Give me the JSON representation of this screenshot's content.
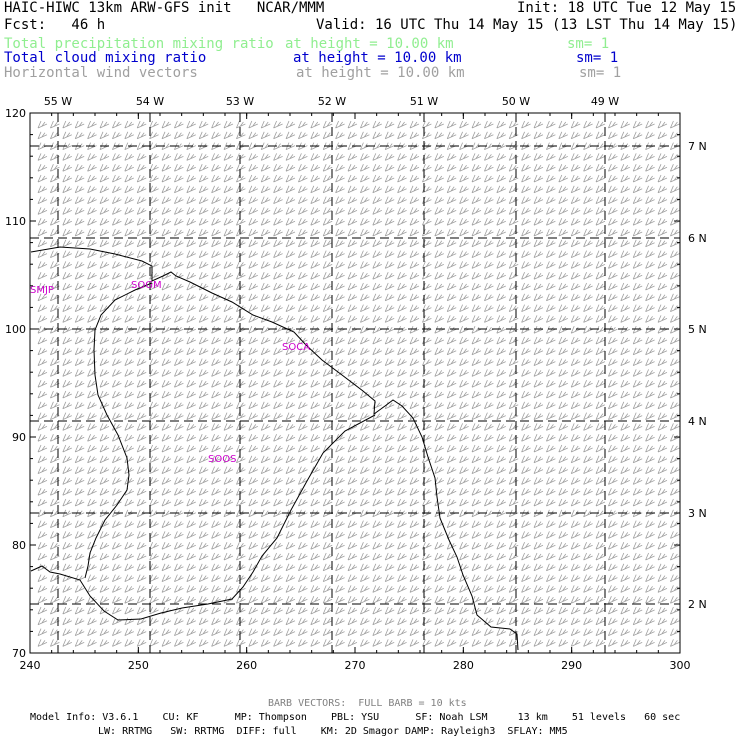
{
  "header": {
    "title": "HAIC-HIWC 13km ARW-GFS init   NCAR/MMM",
    "init": "Init: 18 UTC Tue 12 May 15",
    "fcst": "Fcst:   46 h",
    "valid": "Valid: 16 UTC Thu 14 May 15 (13 LST Thu 14 May 15)",
    "fields": [
      {
        "name": "Total precipitation mixing ratio",
        "height": "at height = 10.00 km",
        "sm": "sm= 1",
        "color": "#90ee90"
      },
      {
        "name": "Total cloud mixing ratio",
        "height": "at height = 10.00 km",
        "sm": "sm= 1",
        "color": "#0000cd"
      },
      {
        "name": "Horizontal wind vectors",
        "height": "at height = 10.00 km",
        "sm": "sm= 1",
        "color": "#a0a0a0"
      }
    ]
  },
  "map": {
    "x_ticks": [
      "240",
      "250",
      "260",
      "270",
      "280",
      "290",
      "300"
    ],
    "y_ticks": [
      "70",
      "80",
      "90",
      "100",
      "110",
      "120"
    ],
    "lon_labels": [
      "55 W",
      "54 W",
      "53 W",
      "52 W",
      "51 W",
      "50 W",
      "49 W"
    ],
    "lat_labels": [
      "7 N",
      "6 N",
      "5 N",
      "4 N",
      "3 N",
      "2 N"
    ],
    "stations": [
      {
        "id": "SMJP"
      },
      {
        "id": "SOGM"
      },
      {
        "id": "SOCA"
      },
      {
        "id": "SOOS"
      }
    ],
    "station_color": "#cc00cc",
    "barb_color": "#a0a0a0"
  },
  "footer": {
    "barb_note": "BARB VECTORS:  FULL BARB = 10 kts",
    "model_line1": "Model Info: V3.6.1    CU: KF      MP: Thompson    PBL: YSU      SF: Noah LSM     13 km    51 levels   60 sec",
    "model_line2": "LW: RRTMG   SW: RRTMG  DIFF: full    KM: 2D Smagor DAMP: Rayleigh3  SFLAY: MM5"
  }
}
